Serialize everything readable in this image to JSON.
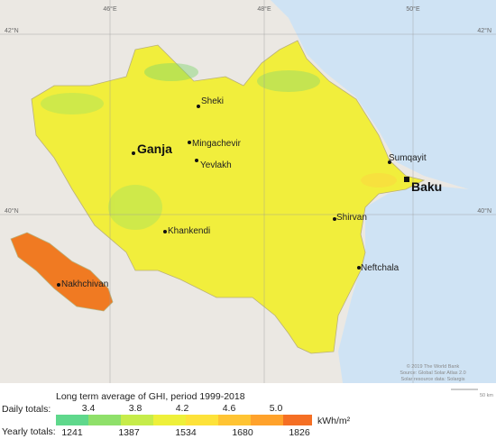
{
  "map": {
    "coords": {
      "lon": [
        "46°E",
        "48°E",
        "50°E"
      ],
      "lat_left": [
        "42°N",
        "40°N"
      ],
      "lat_right": [
        "42°N",
        "40°N"
      ]
    },
    "cities": [
      "Sheki",
      "Ganja",
      "Mingachevir",
      "Yevlakh",
      "Sumqayit",
      "Baku",
      "Shirvan",
      "Khankendi",
      "Nakhchivan",
      "Neftchala"
    ],
    "attribution": [
      "© 2019 The World Bank",
      "Source: Global Solar Atlas 2.0",
      "Solar resource data: Solargis"
    ],
    "scale": "50 km"
  },
  "legend": {
    "title": "Long term average of GHI, period 1999-2018",
    "daily_label": "Daily totals:",
    "daily": [
      "3.4",
      "3.8",
      "4.2",
      "4.6",
      "5.0"
    ],
    "unit": "kWh/m²",
    "yearly_label": "Yearly totals:",
    "yearly": [
      "1241",
      "1387",
      "1534",
      "1680",
      "1826"
    ]
  }
}
